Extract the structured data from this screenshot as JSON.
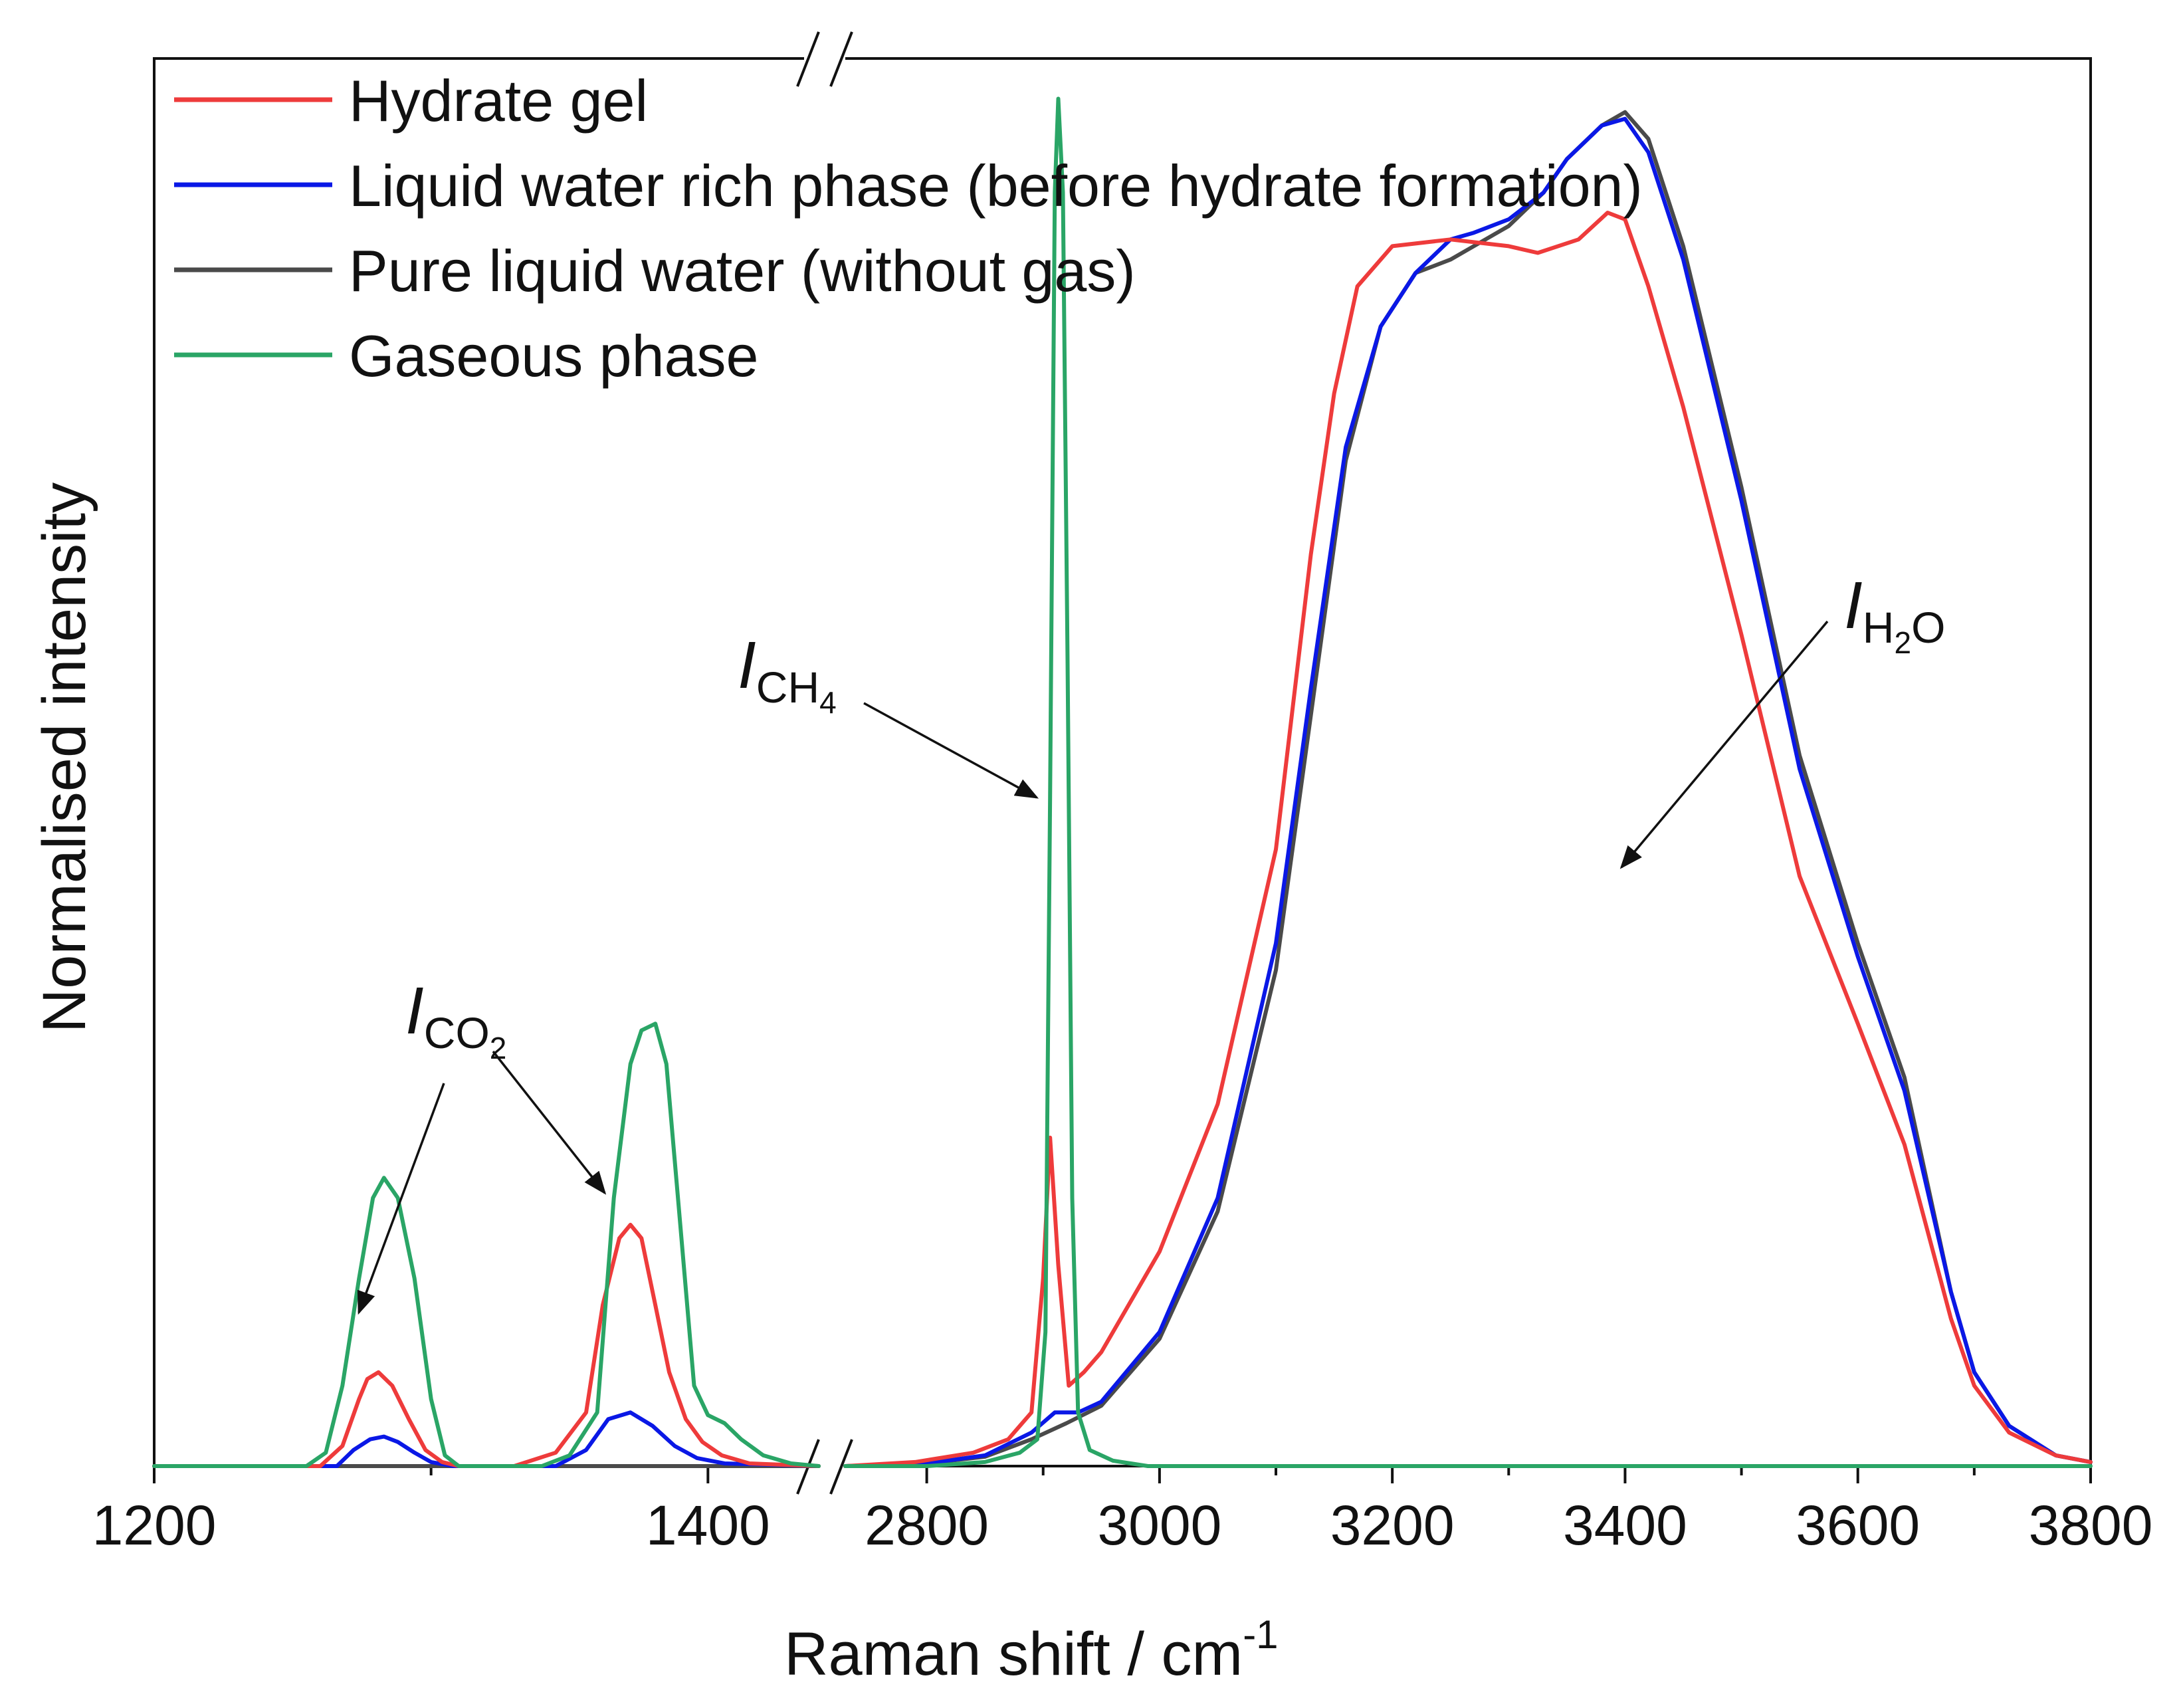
{
  "chart_data": {
    "type": "line",
    "title": "",
    "xlabel": "Raman shift  /  cm",
    "xlabel_superscript": "-1",
    "ylabel": "Normalised intensity",
    "x_broken_axis": true,
    "x_segments": [
      {
        "xlim": [
          1200,
          1440
        ],
        "ticks": [
          1200,
          1400
        ],
        "tick_labels": [
          "1200",
          "1400"
        ]
      },
      {
        "xlim": [
          2730,
          3800
        ],
        "ticks": [
          2800,
          3000,
          3200,
          3400,
          3600,
          3800
        ],
        "tick_labels": [
          "2800",
          "3000",
          "3200",
          "3400",
          "3600",
          "3800"
        ]
      }
    ],
    "ylim": [
      0,
      1.05
    ],
    "y_ticks_shown": false,
    "legend_position": "top-left",
    "series": [
      {
        "name": "Hydrate gel",
        "color": "#ee3b3b",
        "segment1": [
          [
            1200,
            0
          ],
          [
            1260,
            0
          ],
          [
            1268,
            0.015
          ],
          [
            1274,
            0.05
          ],
          [
            1277,
            0.065
          ],
          [
            1281,
            0.07
          ],
          [
            1286,
            0.06
          ],
          [
            1292,
            0.035
          ],
          [
            1298,
            0.012
          ],
          [
            1304,
            0.003
          ],
          [
            1310,
            0
          ],
          [
            1330,
            0
          ],
          [
            1345,
            0.01
          ],
          [
            1356,
            0.04
          ],
          [
            1362,
            0.12
          ],
          [
            1368,
            0.17
          ],
          [
            1372,
            0.18
          ],
          [
            1376,
            0.17
          ],
          [
            1381,
            0.12
          ],
          [
            1386,
            0.07
          ],
          [
            1392,
            0.035
          ],
          [
            1398,
            0.018
          ],
          [
            1405,
            0.008
          ],
          [
            1415,
            0.002
          ],
          [
            1440,
            0
          ]
        ],
        "segment2": [
          [
            2730,
            0
          ],
          [
            2790,
            0.003
          ],
          [
            2840,
            0.01
          ],
          [
            2870,
            0.02
          ],
          [
            2890,
            0.04
          ],
          [
            2900,
            0.14
          ],
          [
            2906,
            0.245
          ],
          [
            2913,
            0.15
          ],
          [
            2922,
            0.06
          ],
          [
            2935,
            0.07
          ],
          [
            2950,
            0.085
          ],
          [
            3000,
            0.16
          ],
          [
            3050,
            0.27
          ],
          [
            3100,
            0.46
          ],
          [
            3130,
            0.68
          ],
          [
            3150,
            0.8
          ],
          [
            3170,
            0.88
          ],
          [
            3200,
            0.91
          ],
          [
            3250,
            0.915
          ],
          [
            3300,
            0.91
          ],
          [
            3325,
            0.905
          ],
          [
            3360,
            0.915
          ],
          [
            3385,
            0.935
          ],
          [
            3400,
            0.93
          ],
          [
            3420,
            0.88
          ],
          [
            3450,
            0.79
          ],
          [
            3500,
            0.62
          ],
          [
            3550,
            0.44
          ],
          [
            3600,
            0.33
          ],
          [
            3640,
            0.24
          ],
          [
            3680,
            0.11
          ],
          [
            3700,
            0.06
          ],
          [
            3730,
            0.025
          ],
          [
            3770,
            0.008
          ],
          [
            3800,
            0.003
          ]
        ]
      },
      {
        "name": "Liquid water rich phase (before hydrate formation)",
        "color": "#0a18e6",
        "segment1": [
          [
            1200,
            0
          ],
          [
            1266,
            0
          ],
          [
            1272,
            0.012
          ],
          [
            1278,
            0.02
          ],
          [
            1283,
            0.022
          ],
          [
            1288,
            0.018
          ],
          [
            1294,
            0.01
          ],
          [
            1300,
            0.003
          ],
          [
            1308,
            0
          ],
          [
            1345,
            0
          ],
          [
            1356,
            0.012
          ],
          [
            1364,
            0.035
          ],
          [
            1372,
            0.04
          ],
          [
            1380,
            0.03
          ],
          [
            1388,
            0.015
          ],
          [
            1396,
            0.006
          ],
          [
            1406,
            0.002
          ],
          [
            1440,
            0
          ]
        ],
        "segment2": [
          [
            2730,
            0
          ],
          [
            2800,
            0.002
          ],
          [
            2850,
            0.008
          ],
          [
            2890,
            0.025
          ],
          [
            2910,
            0.04
          ],
          [
            2930,
            0.04
          ],
          [
            2950,
            0.048
          ],
          [
            3000,
            0.1
          ],
          [
            3050,
            0.2
          ],
          [
            3100,
            0.39
          ],
          [
            3130,
            0.58
          ],
          [
            3160,
            0.76
          ],
          [
            3190,
            0.85
          ],
          [
            3220,
            0.89
          ],
          [
            3250,
            0.915
          ],
          [
            3270,
            0.92
          ],
          [
            3300,
            0.93
          ],
          [
            3330,
            0.95
          ],
          [
            3350,
            0.975
          ],
          [
            3380,
            1.0
          ],
          [
            3400,
            1.005
          ],
          [
            3420,
            0.98
          ],
          [
            3450,
            0.9
          ],
          [
            3500,
            0.72
          ],
          [
            3550,
            0.52
          ],
          [
            3600,
            0.38
          ],
          [
            3640,
            0.28
          ],
          [
            3680,
            0.13
          ],
          [
            3700,
            0.07
          ],
          [
            3730,
            0.03
          ],
          [
            3770,
            0.008
          ],
          [
            3800,
            0.003
          ]
        ]
      },
      {
        "name": "Pure liquid water (without gas)",
        "color": "#4a4a4a",
        "segment1": [
          [
            1200,
            0
          ],
          [
            1440,
            0
          ]
        ],
        "segment2": [
          [
            2730,
            0
          ],
          [
            2800,
            0.002
          ],
          [
            2850,
            0.007
          ],
          [
            2890,
            0.02
          ],
          [
            2920,
            0.032
          ],
          [
            2950,
            0.045
          ],
          [
            3000,
            0.095
          ],
          [
            3050,
            0.19
          ],
          [
            3100,
            0.37
          ],
          [
            3130,
            0.56
          ],
          [
            3160,
            0.75
          ],
          [
            3190,
            0.85
          ],
          [
            3220,
            0.89
          ],
          [
            3250,
            0.9
          ],
          [
            3280,
            0.915
          ],
          [
            3300,
            0.925
          ],
          [
            3330,
            0.95
          ],
          [
            3350,
            0.975
          ],
          [
            3380,
            1.0
          ],
          [
            3400,
            1.01
          ],
          [
            3420,
            0.99
          ],
          [
            3450,
            0.91
          ],
          [
            3500,
            0.73
          ],
          [
            3550,
            0.53
          ],
          [
            3600,
            0.39
          ],
          [
            3640,
            0.29
          ],
          [
            3680,
            0.13
          ],
          [
            3700,
            0.07
          ],
          [
            3730,
            0.03
          ],
          [
            3770,
            0.008
          ],
          [
            3800,
            0.003
          ]
        ]
      },
      {
        "name": "Gaseous phase",
        "color": "#2aa566",
        "segment1": [
          [
            1200,
            0
          ],
          [
            1255,
            0
          ],
          [
            1262,
            0.01
          ],
          [
            1268,
            0.06
          ],
          [
            1274,
            0.14
          ],
          [
            1279,
            0.2
          ],
          [
            1283,
            0.215
          ],
          [
            1288,
            0.2
          ],
          [
            1294,
            0.14
          ],
          [
            1300,
            0.05
          ],
          [
            1305,
            0.008
          ],
          [
            1310,
            0
          ],
          [
            1340,
            0
          ],
          [
            1350,
            0.008
          ],
          [
            1360,
            0.04
          ],
          [
            1366,
            0.2
          ],
          [
            1372,
            0.3
          ],
          [
            1376,
            0.325
          ],
          [
            1381,
            0.33
          ],
          [
            1385,
            0.3
          ],
          [
            1390,
            0.18
          ],
          [
            1395,
            0.06
          ],
          [
            1400,
            0.038
          ],
          [
            1406,
            0.032
          ],
          [
            1412,
            0.02
          ],
          [
            1420,
            0.008
          ],
          [
            1430,
            0.002
          ],
          [
            1440,
            0
          ]
        ],
        "segment2": [
          [
            2730,
            0
          ],
          [
            2800,
            0
          ],
          [
            2850,
            0.003
          ],
          [
            2880,
            0.01
          ],
          [
            2895,
            0.02
          ],
          [
            2902,
            0.1
          ],
          [
            2906,
            0.5
          ],
          [
            2910,
            0.95
          ],
          [
            2913,
            1.02
          ],
          [
            2917,
            0.95
          ],
          [
            2921,
            0.6
          ],
          [
            2925,
            0.2
          ],
          [
            2930,
            0.04
          ],
          [
            2940,
            0.012
          ],
          [
            2960,
            0.004
          ],
          [
            2990,
            0
          ],
          [
            3800,
            0
          ]
        ]
      }
    ],
    "annotations": [
      {
        "label": "I",
        "subscript": "CO2",
        "subscript_parts": [
          "CO",
          "2"
        ]
      },
      {
        "label": "I",
        "subscript": "CH4",
        "subscript_parts": [
          "CH",
          "4"
        ]
      },
      {
        "label": "I",
        "subscript": "H2O",
        "subscript_parts": [
          "H",
          "2",
          "O"
        ]
      }
    ]
  }
}
